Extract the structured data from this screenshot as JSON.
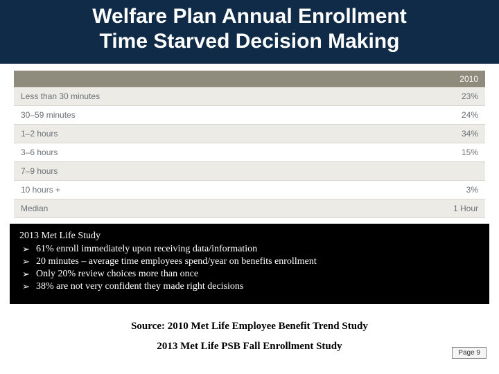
{
  "title": {
    "line1": "Welfare Plan Annual Enrollment",
    "line2": "Time Starved Decision Making"
  },
  "table": {
    "header_bg": "#8f8c7d",
    "row_colors_alt": [
      "#ecebe6",
      "#ffffff"
    ],
    "border_color": "#d9d7cf",
    "text_color": "#6b7178",
    "columns": [
      "",
      "2010"
    ],
    "rows": [
      [
        "Less than 30 minutes",
        "23%"
      ],
      [
        "30–59 minutes",
        "24%"
      ],
      [
        "1–2 hours",
        "34%"
      ],
      [
        "3–6 hours",
        "15%"
      ],
      [
        "7–9 hours",
        ""
      ],
      [
        "10 hours +",
        "3%"
      ],
      [
        "Median",
        "1 Hour"
      ]
    ]
  },
  "study": {
    "heading": "2013 Met Life Study",
    "bullets": [
      "61% enroll immediately upon receiving data/information",
      "20 minutes – average time employees spend/year on benefits enrollment",
      "Only 20% review choices more than once",
      "38% are not very confident they made right decisions"
    ]
  },
  "source1": "Source:  2010 Met Life Employee Benefit Trend Study",
  "source2": "2013 Met Life PSB Fall Enrollment Study",
  "page_label": "Page 9",
  "colors": {
    "banner_bg": "#0f2b47",
    "banner_text": "#ffffff",
    "study_bg": "#000000",
    "study_text": "#ffffff"
  }
}
